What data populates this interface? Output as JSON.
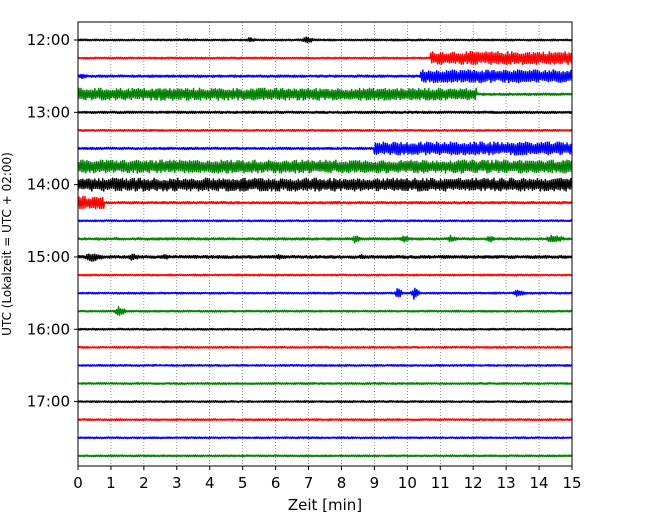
{
  "chart_data": {
    "type": "line",
    "subtype": "helicorder-seismogram",
    "xlabel": "Zeit  [min]",
    "ylabel": "UTC (Lokalzeit = UTC + 02:00)",
    "xlim": [
      0,
      15
    ],
    "x_ticks": [
      "0",
      "1",
      "2",
      "3",
      "4",
      "5",
      "6",
      "7",
      "8",
      "9",
      "10",
      "11",
      "12",
      "13",
      "14",
      "15"
    ],
    "y_tick_labels": [
      "12:00",
      "13:00",
      "14:00",
      "15:00",
      "16:00",
      "17:00"
    ],
    "grid": {
      "vertical_dotted": true
    },
    "trace_colors": [
      "#000000",
      "#ff0000",
      "#0000ff",
      "#008000"
    ],
    "traces": [
      {
        "start": "12:00",
        "color": "#000000",
        "base": 1.2,
        "events": [
          {
            "t": 5.1,
            "dur": 0.3,
            "amp": 3
          },
          {
            "t": 6.8,
            "dur": 0.4,
            "amp": 4
          },
          {
            "t": 3.2,
            "dur": 0.3,
            "amp": 1.5
          }
        ]
      },
      {
        "start": "12:15",
        "color": "#ff0000",
        "base": 1.2,
        "events": [
          {
            "t": 10.7,
            "dur": 4.3,
            "amp": 7,
            "block": true
          }
        ]
      },
      {
        "start": "12:30",
        "color": "#0000ff",
        "base": 1.5,
        "events": [
          {
            "t": 0.0,
            "dur": 0.3,
            "amp": 3
          },
          {
            "t": 10.4,
            "dur": 4.6,
            "amp": 7,
            "block": true
          }
        ]
      },
      {
        "start": "12:45",
        "color": "#008000",
        "base": 6.5,
        "end_block": 12.1,
        "after_base": 1.5
      },
      {
        "start": "13:00",
        "color": "#000000",
        "base": 1.5,
        "events": []
      },
      {
        "start": "13:15",
        "color": "#ff0000",
        "base": 1.2,
        "events": []
      },
      {
        "start": "13:30",
        "color": "#0000ff",
        "base": 1.5,
        "events": [
          {
            "t": 9.0,
            "dur": 6.0,
            "amp": 7,
            "block": true
          }
        ]
      },
      {
        "start": "13:45",
        "color": "#008000",
        "base": 7,
        "events": []
      },
      {
        "start": "14:00",
        "color": "#000000",
        "base": 7,
        "events": []
      },
      {
        "start": "14:15",
        "color": "#ff0000",
        "base": 1.5,
        "events": [
          {
            "t": 0.0,
            "dur": 0.8,
            "amp": 7,
            "block": true
          }
        ]
      },
      {
        "start": "14:30",
        "color": "#0000ff",
        "base": 1.2,
        "events": []
      },
      {
        "start": "14:45",
        "color": "#008000",
        "base": 1.5,
        "events": [
          {
            "t": 8.3,
            "dur": 0.3,
            "amp": 5
          },
          {
            "t": 9.8,
            "dur": 0.3,
            "amp": 4
          },
          {
            "t": 11.2,
            "dur": 0.3,
            "amp": 4
          },
          {
            "t": 12.4,
            "dur": 0.3,
            "amp": 4
          },
          {
            "t": 14.2,
            "dur": 0.6,
            "amp": 5
          }
        ]
      },
      {
        "start": "15:00",
        "color": "#000000",
        "base": 1.8,
        "events": [
          {
            "t": 0.2,
            "dur": 0.6,
            "amp": 5
          },
          {
            "t": 1.5,
            "dur": 0.4,
            "amp": 4
          },
          {
            "t": 2.5,
            "dur": 0.3,
            "amp": 3
          },
          {
            "t": 6.0,
            "dur": 0.3,
            "amp": 3
          },
          {
            "t": 8.5,
            "dur": 0.3,
            "amp": 3
          }
        ]
      },
      {
        "start": "15:15",
        "color": "#ff0000",
        "base": 1.2,
        "events": []
      },
      {
        "start": "15:30",
        "color": "#0000ff",
        "base": 1.2,
        "events": [
          {
            "t": 9.6,
            "dur": 0.3,
            "amp": 6
          },
          {
            "t": 10.1,
            "dur": 0.3,
            "amp": 7
          },
          {
            "t": 13.2,
            "dur": 0.4,
            "amp": 4
          }
        ]
      },
      {
        "start": "15:45",
        "color": "#008000",
        "base": 1.2,
        "events": [
          {
            "t": 1.1,
            "dur": 0.4,
            "amp": 6
          }
        ]
      },
      {
        "start": "16:00",
        "color": "#000000",
        "base": 1.2,
        "events": []
      },
      {
        "start": "16:15",
        "color": "#ff0000",
        "base": 1.2,
        "events": []
      },
      {
        "start": "16:30",
        "color": "#0000ff",
        "base": 1.2,
        "events": []
      },
      {
        "start": "16:45",
        "color": "#008000",
        "base": 1.2,
        "events": []
      },
      {
        "start": "17:00",
        "color": "#000000",
        "base": 1.2,
        "events": []
      },
      {
        "start": "17:15",
        "color": "#ff0000",
        "base": 1.2,
        "events": []
      },
      {
        "start": "17:30",
        "color": "#0000ff",
        "base": 1.2,
        "events": []
      },
      {
        "start": "17:45",
        "color": "#008000",
        "base": 1.2,
        "events": []
      }
    ]
  }
}
